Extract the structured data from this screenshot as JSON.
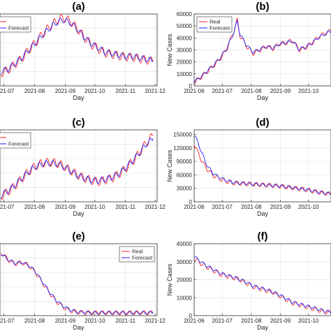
{
  "chart_data": [
    {
      "id": "a",
      "title": "(a)",
      "type": "line",
      "xlabel": "Day",
      "ylabel": "",
      "xlim": [
        "2021-06-27",
        "2021-12-03"
      ],
      "ylim": [
        0,
        100
      ],
      "xticks": [
        "2021-07",
        "2021-08",
        "2021-09",
        "2021-10",
        "2021-11",
        "2021-12"
      ],
      "yticks": [],
      "legend": {
        "entries": [
          "",
          "Forecast"
        ],
        "position": "top-left"
      },
      "grid": true,
      "series": [
        {
          "color": "#ff2020",
          "x": [
            "2021-06-28",
            "2021-07-05",
            "2021-07-12",
            "2021-07-19",
            "2021-07-26",
            "2021-08-02",
            "2021-08-09",
            "2021-08-16",
            "2021-08-23",
            "2021-08-30",
            "2021-09-06",
            "2021-09-13",
            "2021-09-20",
            "2021-09-27",
            "2021-10-04",
            "2021-10-11",
            "2021-10-18",
            "2021-10-25",
            "2021-11-01",
            "2021-11-08",
            "2021-11-15",
            "2021-11-22",
            "2021-11-29"
          ],
          "y": [
            18,
            22,
            30,
            38,
            50,
            60,
            72,
            82,
            90,
            95,
            90,
            80,
            68,
            58,
            52,
            46,
            44,
            42,
            40,
            40,
            38,
            36,
            34
          ]
        },
        {
          "color": "#2020ff",
          "x": [
            "2021-06-28",
            "2021-07-05",
            "2021-07-12",
            "2021-07-19",
            "2021-07-26",
            "2021-08-02",
            "2021-08-09",
            "2021-08-16",
            "2021-08-23",
            "2021-08-30",
            "2021-09-06",
            "2021-09-13",
            "2021-09-20",
            "2021-09-27",
            "2021-10-04",
            "2021-10-11",
            "2021-10-18",
            "2021-10-25",
            "2021-11-01",
            "2021-11-08",
            "2021-11-15",
            "2021-11-22",
            "2021-11-29"
          ],
          "y": [
            20,
            23,
            31,
            39,
            50,
            60,
            71,
            80,
            88,
            92,
            88,
            79,
            68,
            59,
            53,
            47,
            45,
            43,
            41,
            41,
            39,
            37,
            35
          ]
        }
      ]
    },
    {
      "id": "b",
      "title": "(b)",
      "type": "line",
      "xlabel": "Day",
      "ylabel": "New Cases",
      "xlim": [
        "2021-06-01",
        "2021-10-25"
      ],
      "ylim": [
        0,
        60000
      ],
      "xticks": [
        "2021-06",
        "2021-07",
        "2021-08",
        "2021-09",
        "2021-10"
      ],
      "yticks": [
        0,
        10000,
        20000,
        30000,
        40000,
        50000,
        60000
      ],
      "legend": {
        "entries": [
          "Real",
          "Forecast"
        ],
        "position": "top-left"
      },
      "grid": true,
      "series": [
        {
          "name": "Real",
          "color": "#ff2020",
          "x": [
            "2021-06-01",
            "2021-06-08",
            "2021-06-15",
            "2021-06-22",
            "2021-06-29",
            "2021-07-06",
            "2021-07-13",
            "2021-07-17",
            "2021-07-20",
            "2021-07-27",
            "2021-08-03",
            "2021-08-10",
            "2021-08-17",
            "2021-08-24",
            "2021-08-31",
            "2021-09-07",
            "2021-09-14",
            "2021-09-21",
            "2021-09-28",
            "2021-10-05",
            "2021-10-12",
            "2021-10-19",
            "2021-10-25"
          ],
          "y": [
            3000,
            7000,
            12000,
            17000,
            23000,
            31000,
            45000,
            55000,
            42000,
            33000,
            27000,
            30000,
            33000,
            31000,
            35000,
            36000,
            38000,
            30000,
            32000,
            36000,
            41000,
            44000,
            46000
          ]
        },
        {
          "name": "Forecast",
          "color": "#2020ff",
          "x": [
            "2021-06-01",
            "2021-06-08",
            "2021-06-15",
            "2021-06-22",
            "2021-06-29",
            "2021-07-06",
            "2021-07-13",
            "2021-07-17",
            "2021-07-20",
            "2021-07-27",
            "2021-08-03",
            "2021-08-10",
            "2021-08-17",
            "2021-08-24",
            "2021-08-31",
            "2021-09-07",
            "2021-09-14",
            "2021-09-21",
            "2021-09-28",
            "2021-10-05",
            "2021-10-12",
            "2021-10-19",
            "2021-10-25"
          ],
          "y": [
            3500,
            7500,
            12500,
            17500,
            23500,
            31500,
            44000,
            54000,
            43000,
            34000,
            28000,
            30500,
            33000,
            31500,
            35000,
            36000,
            37500,
            30500,
            32500,
            36000,
            40500,
            43500,
            45500
          ]
        }
      ]
    },
    {
      "id": "c",
      "title": "(c)",
      "type": "line",
      "xlabel": "Day",
      "ylabel": "",
      "xlim": [
        "2021-06-27",
        "2021-12-03"
      ],
      "ylim": [
        0,
        100
      ],
      "xticks": [
        "2021-07",
        "2021-08",
        "2021-09",
        "2021-10",
        "2021-11",
        "2021-12"
      ],
      "yticks": [],
      "legend": {
        "entries": [
          "",
          "Forecast"
        ],
        "position": "top-left"
      },
      "grid": true,
      "series": [
        {
          "color": "#ff2020",
          "x": [
            "2021-06-28",
            "2021-07-05",
            "2021-07-12",
            "2021-07-19",
            "2021-07-26",
            "2021-08-02",
            "2021-08-09",
            "2021-08-16",
            "2021-08-23",
            "2021-08-30",
            "2021-09-06",
            "2021-09-13",
            "2021-09-20",
            "2021-09-27",
            "2021-10-04",
            "2021-10-11",
            "2021-10-18",
            "2021-10-25",
            "2021-11-01",
            "2021-11-08",
            "2021-11-15",
            "2021-11-22",
            "2021-11-29"
          ],
          "y": [
            8,
            14,
            22,
            32,
            42,
            50,
            54,
            55,
            54,
            50,
            44,
            38,
            33,
            30,
            28,
            30,
            33,
            38,
            46,
            56,
            68,
            82,
            92
          ]
        },
        {
          "color": "#2020ff",
          "x": [
            "2021-06-28",
            "2021-07-05",
            "2021-07-12",
            "2021-07-19",
            "2021-07-26",
            "2021-08-02",
            "2021-08-09",
            "2021-08-16",
            "2021-08-23",
            "2021-08-30",
            "2021-09-06",
            "2021-09-13",
            "2021-09-20",
            "2021-09-27",
            "2021-10-04",
            "2021-10-11",
            "2021-10-18",
            "2021-10-25",
            "2021-11-01",
            "2021-11-08",
            "2021-11-15",
            "2021-11-22",
            "2021-11-29"
          ],
          "y": [
            9,
            15,
            23,
            33,
            42,
            49,
            53,
            54,
            53,
            49,
            43,
            37,
            33,
            30,
            29,
            31,
            34,
            39,
            47,
            57,
            68,
            80,
            88
          ]
        }
      ]
    },
    {
      "id": "d",
      "title": "(d)",
      "type": "line",
      "xlabel": "Day",
      "ylabel": "New Cases",
      "xlim": [
        "2021-06-01",
        "2021-10-25"
      ],
      "ylim": [
        0,
        160000
      ],
      "xticks": [
        "2021-06",
        "2021-07",
        "2021-08",
        "2021-09",
        "2021-10"
      ],
      "yticks": [
        0,
        30000,
        60000,
        90000,
        120000,
        150000
      ],
      "legend": {
        "entries": [],
        "position": ""
      },
      "grid": true,
      "series": [
        {
          "color": "#ff2020",
          "x": [
            "2021-06-01",
            "2021-06-05",
            "2021-06-10",
            "2021-06-15",
            "2021-06-22",
            "2021-06-29",
            "2021-07-06",
            "2021-07-13",
            "2021-07-20",
            "2021-07-27",
            "2021-08-03",
            "2021-08-10",
            "2021-08-17",
            "2021-08-24",
            "2021-08-31",
            "2021-09-07",
            "2021-09-14",
            "2021-09-21",
            "2021-09-28",
            "2021-10-05",
            "2021-10-12",
            "2021-10-19",
            "2021-10-25"
          ],
          "y": [
            130000,
            110000,
            88000,
            72000,
            58000,
            50000,
            45000,
            42000,
            41000,
            40000,
            39000,
            38000,
            37000,
            36000,
            35000,
            33000,
            31000,
            29000,
            27000,
            24000,
            21000,
            19000,
            17000
          ]
        },
        {
          "color": "#2020ff",
          "x": [
            "2021-06-01",
            "2021-06-05",
            "2021-06-10",
            "2021-06-15",
            "2021-06-22",
            "2021-06-29",
            "2021-07-06",
            "2021-07-13",
            "2021-07-20",
            "2021-07-27",
            "2021-08-03",
            "2021-08-10",
            "2021-08-17",
            "2021-08-24",
            "2021-08-31",
            "2021-09-07",
            "2021-09-14",
            "2021-09-21",
            "2021-09-28",
            "2021-10-05",
            "2021-10-12",
            "2021-10-19",
            "2021-10-25"
          ],
          "y": [
            150000,
            132000,
            105000,
            80000,
            62000,
            53000,
            47000,
            43000,
            41500,
            40500,
            39500,
            38500,
            37500,
            36500,
            35500,
            33500,
            31500,
            29500,
            27500,
            24500,
            21500,
            19500,
            17500
          ]
        }
      ]
    },
    {
      "id": "e",
      "title": "(e)",
      "type": "line",
      "xlabel": "Day",
      "ylabel": "",
      "xlim": [
        "2021-06-27",
        "2021-12-03"
      ],
      "ylim": [
        0,
        100
      ],
      "xticks": [
        "2021-07",
        "2021-08",
        "2021-09",
        "2021-10",
        "2021-11",
        "2021-12"
      ],
      "yticks": [],
      "legend": {
        "entries": [
          "Real",
          "Forecast"
        ],
        "position": "top-right"
      },
      "grid": true,
      "series": [
        {
          "name": "Real",
          "color": "#ff2020",
          "x": [
            "2021-06-28",
            "2021-07-05",
            "2021-07-12",
            "2021-07-19",
            "2021-07-26",
            "2021-08-02",
            "2021-08-09",
            "2021-08-16",
            "2021-08-23",
            "2021-08-30",
            "2021-09-06",
            "2021-09-13",
            "2021-09-20",
            "2021-09-27",
            "2021-10-04",
            "2021-10-11",
            "2021-10-18",
            "2021-10-25",
            "2021-11-01",
            "2021-11-08",
            "2021-11-15",
            "2021-11-22",
            "2021-11-29"
          ],
          "y": [
            88,
            78,
            72,
            74,
            70,
            60,
            46,
            32,
            20,
            12,
            7,
            5,
            4,
            4,
            4,
            4,
            4,
            4,
            4,
            4,
            4,
            4,
            4
          ]
        },
        {
          "name": "Forecast",
          "color": "#2020ff",
          "x": [
            "2021-06-28",
            "2021-07-05",
            "2021-07-12",
            "2021-07-19",
            "2021-07-26",
            "2021-08-02",
            "2021-08-09",
            "2021-08-16",
            "2021-08-23",
            "2021-08-30",
            "2021-09-06",
            "2021-09-13",
            "2021-09-20",
            "2021-09-27",
            "2021-10-04",
            "2021-10-11",
            "2021-10-18",
            "2021-10-25",
            "2021-11-01",
            "2021-11-08",
            "2021-11-15",
            "2021-11-22",
            "2021-11-29"
          ],
          "y": [
            86,
            78,
            73,
            74,
            70,
            61,
            47,
            33,
            21,
            13,
            8,
            5,
            5,
            4,
            4,
            4,
            4,
            4,
            4,
            4,
            4,
            4,
            4
          ]
        }
      ]
    },
    {
      "id": "f",
      "title": "(f)",
      "type": "line",
      "xlabel": "Day",
      "ylabel": "New Cases",
      "xlim": [
        "2021-06-01",
        "2021-10-25"
      ],
      "ylim": [
        0,
        40000
      ],
      "xticks": [
        "2021-06",
        "2021-07",
        "2021-08",
        "2021-09",
        "2021-10"
      ],
      "yticks": [
        0,
        10000,
        20000,
        30000,
        40000
      ],
      "legend": {
        "entries": [],
        "position": ""
      },
      "grid": true,
      "series": [
        {
          "color": "#ff2020",
          "x": [
            "2021-06-01",
            "2021-06-08",
            "2021-06-15",
            "2021-06-22",
            "2021-06-29",
            "2021-07-06",
            "2021-07-13",
            "2021-07-20",
            "2021-07-27",
            "2021-08-03",
            "2021-08-10",
            "2021-08-17",
            "2021-08-24",
            "2021-08-31",
            "2021-09-07",
            "2021-09-14",
            "2021-09-21",
            "2021-09-28",
            "2021-10-05",
            "2021-10-12",
            "2021-10-19",
            "2021-10-25"
          ],
          "y": [
            32000,
            29000,
            27000,
            25000,
            23000,
            22000,
            21000,
            20000,
            18000,
            16000,
            15000,
            14000,
            13000,
            11000,
            9000,
            7000,
            6000,
            5000,
            4000,
            3000,
            2000,
            1500
          ]
        },
        {
          "color": "#2020ff",
          "x": [
            "2021-06-01",
            "2021-06-08",
            "2021-06-15",
            "2021-06-22",
            "2021-06-29",
            "2021-07-06",
            "2021-07-13",
            "2021-07-20",
            "2021-07-27",
            "2021-08-03",
            "2021-08-10",
            "2021-08-17",
            "2021-08-24",
            "2021-08-31",
            "2021-09-07",
            "2021-09-14",
            "2021-09-21",
            "2021-09-28",
            "2021-10-05",
            "2021-10-12",
            "2021-10-19",
            "2021-10-25"
          ],
          "y": [
            33000,
            30000,
            27500,
            25500,
            23500,
            22500,
            21500,
            20000,
            18500,
            16500,
            15500,
            14500,
            13000,
            11500,
            9500,
            7500,
            6500,
            5500,
            4500,
            3500,
            2500,
            2000
          ]
        }
      ]
    }
  ]
}
